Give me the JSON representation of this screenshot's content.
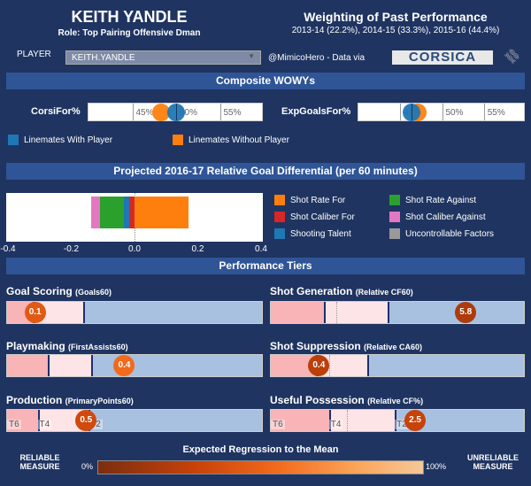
{
  "header": {
    "player_name": "KEITH YANDLE",
    "role": "Role: Top Pairing Offensive Dman",
    "weighting_title": "Weighting of Past Performance",
    "weighting_detail": "2013-14 (22.2%), 2014-15 (33.3%), 2015-16 (44.4%)"
  },
  "controls": {
    "player_label": "PLAYER",
    "player_value": "KEITH.YANDLE",
    "credit": "@MimicoHero - Data via",
    "logo": "CORSICA"
  },
  "wowy": {
    "title": "Composite WOWYs",
    "colors": {
      "with": "#1f77b4",
      "without": "#ff7f0e"
    },
    "metrics": [
      {
        "label": "CorsiFor%",
        "ticks": [
          "45%",
          "50%",
          "55%"
        ],
        "with": 50.0,
        "without": 48.3
      },
      {
        "label": "ExpGoalsFor%",
        "ticks": [
          "45%",
          "50%",
          "55%"
        ],
        "with": 46.3,
        "without": 47.1
      }
    ],
    "legend": {
      "with": "Linemates With Player",
      "without": "Linemates Without Player"
    }
  },
  "projection": {
    "title": "Projected 2016-17 Relative Goal Differential (per 60 minutes)",
    "chart_data": {
      "type": "bar",
      "orientation": "horizontal-stacked",
      "xlim": [
        -0.4,
        0.4
      ],
      "ticks": [
        "-0.4",
        "-0.2",
        "0.0",
        "0.2",
        "0.4"
      ],
      "series": [
        {
          "name": "Shot Rate For",
          "color": "#ff7f0e",
          "value": 0.17
        },
        {
          "name": "Shot Caliber For",
          "color": "#d62728",
          "value": -0.016
        },
        {
          "name": "Shooting Talent",
          "color": "#1f77b4",
          "value": -0.018
        },
        {
          "name": "Shot Rate Against",
          "color": "#2ca02c",
          "value": -0.074
        },
        {
          "name": "Shot Caliber Against",
          "color": "#e377c2",
          "value": -0.03
        },
        {
          "name": "Uncontrollable Factors",
          "color": "#999999",
          "value": 0
        }
      ]
    }
  },
  "tiers": {
    "title": "Performance Tiers",
    "rows": [
      {
        "label": "Goal Scoring",
        "metric": "(Goals60)",
        "dotted": null,
        "tierlabels": [],
        "value": "0.1",
        "pos": 0.11,
        "regression": 0.45
      },
      {
        "label": "Shot Generation",
        "metric": "(Relative CF60)",
        "dotted": 0.26,
        "tierlabels": [],
        "value": "5.8",
        "pos": 0.77,
        "regression": 0.2
      },
      {
        "label": "Playmaking",
        "metric": "(FirstAssists60)",
        "dotted": null,
        "tierlabels": [],
        "value": "0.4",
        "pos": 0.46,
        "regression": 0.55
      },
      {
        "label": "Shot Suppression",
        "metric": "(Relative CA60)",
        "dotted": 0.23,
        "tierlabels": [],
        "value": "0.4",
        "pos": 0.19,
        "regression": 0.25
      },
      {
        "label": "Production",
        "metric": "(PrimaryPoints60)",
        "dotted": null,
        "tierlabels": [
          "T6",
          "T4",
          "T2"
        ],
        "value": "0.5",
        "pos": 0.31,
        "regression": 0.35
      },
      {
        "label": "Useful Possession",
        "metric": "(Relative CF%)",
        "dotted": 0.3,
        "tierlabels": [
          "T6",
          "T4",
          "T2"
        ],
        "value": "2.5",
        "pos": 0.57,
        "regression": 0.3
      }
    ]
  },
  "scale": {
    "title": "Expected Regression to the Mean",
    "min": "0%",
    "max": "100%",
    "left": "RELIABLE MEASURE",
    "right": "UNRELIABLE MEASURE"
  }
}
